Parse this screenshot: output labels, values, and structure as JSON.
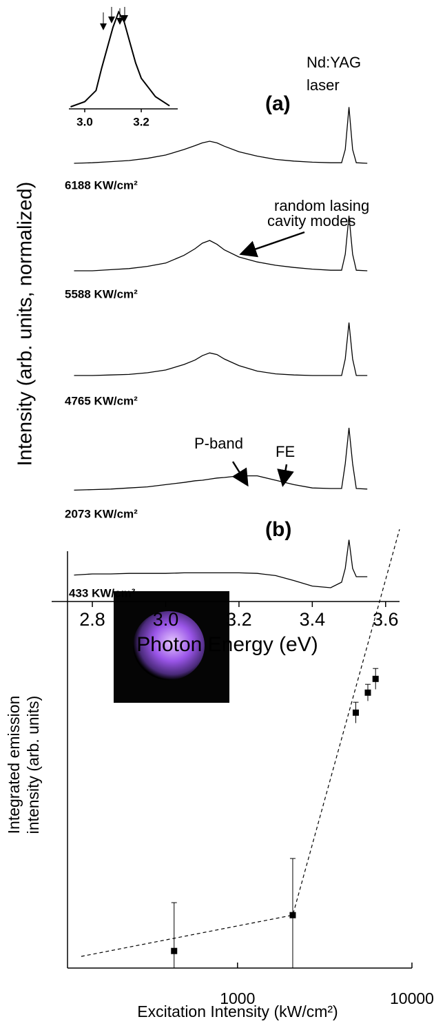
{
  "chart_data": [
    {
      "type": "line",
      "title": "(a)",
      "x_label": "Photon Energy (eV)",
      "y_label": "Intensity (arb. units, normalized)",
      "xlim": [
        2.689,
        3.638
      ],
      "ylim": [
        0,
        10
      ],
      "xticks": [
        2.8,
        {
          "value": 3,
          "label": "3.0"
        },
        3.2,
        3.4,
        3.6
      ],
      "x": [
        2.75,
        2.8,
        2.85,
        2.9,
        2.95,
        3.0,
        3.05,
        3.08,
        3.1,
        3.12,
        3.14,
        3.16,
        3.2,
        3.25,
        3.3,
        3.35,
        3.4,
        3.45,
        3.48,
        3.49,
        3.5,
        3.51,
        3.52,
        3.55
      ],
      "series": [
        {
          "name": "6188 KW/cm²",
          "color": "#000000",
          "values": [
            7.95,
            7.96,
            7.98,
            8.0,
            8.04,
            8.1,
            8.2,
            8.27,
            8.32,
            8.35,
            8.32,
            8.26,
            8.16,
            8.08,
            8.02,
            7.99,
            7.97,
            7.96,
            7.96,
            8.2,
            8.97,
            8.2,
            7.96,
            7.95
          ]
        },
        {
          "name": "5588 KW/cm²",
          "color": "#000000",
          "values": [
            6.0,
            6.0,
            6.02,
            6.04,
            6.08,
            6.14,
            6.28,
            6.4,
            6.5,
            6.55,
            6.48,
            6.38,
            6.25,
            6.16,
            6.1,
            6.06,
            6.03,
            6.01,
            6.01,
            6.3,
            7.0,
            6.3,
            6.01,
            6.0
          ]
        },
        {
          "name": "4765 KW/cm²",
          "color": "#000000",
          "values": [
            4.1,
            4.1,
            4.11,
            4.12,
            4.15,
            4.2,
            4.3,
            4.38,
            4.46,
            4.51,
            4.48,
            4.4,
            4.28,
            4.18,
            4.13,
            4.11,
            4.1,
            4.1,
            4.1,
            4.4,
            5.06,
            4.4,
            4.1,
            4.1
          ]
        },
        {
          "name": "2073 KW/cm²",
          "color": "#000000",
          "values": [
            2.02,
            2.03,
            2.04,
            2.06,
            2.08,
            2.12,
            2.16,
            2.19,
            2.2,
            2.22,
            2.24,
            2.25,
            2.28,
            2.28,
            2.2,
            2.12,
            2.06,
            2.05,
            2.05,
            2.5,
            3.15,
            2.5,
            2.05,
            2.04
          ]
        },
        {
          "name": "433 KW/cm²",
          "color": "#000000",
          "values": [
            0.48,
            0.5,
            0.5,
            0.51,
            0.51,
            0.51,
            0.52,
            0.52,
            0.52,
            0.52,
            0.52,
            0.52,
            0.52,
            0.51,
            0.47,
            0.38,
            0.28,
            0.25,
            0.35,
            0.6,
            1.12,
            0.6,
            0.45,
            0.45
          ]
        }
      ],
      "annotations": [
        "Nd:YAG",
        "laser",
        "random lasing",
        "cavity modes",
        "P-band",
        "FE"
      ]
    },
    {
      "type": "line",
      "xlim": [
        2.944,
        3.329
      ],
      "ylim": [
        0,
        1
      ],
      "xticks": [
        {
          "value": 3,
          "label": "3.0"
        },
        3.2
      ],
      "x": [
        2.95,
        3.0,
        3.04,
        3.06,
        3.08,
        3.1,
        3.12,
        3.14,
        3.16,
        3.18,
        3.2,
        3.25,
        3.3
      ],
      "series": [
        {
          "color": "#000000",
          "values": [
            0.02,
            0.07,
            0.18,
            0.4,
            0.6,
            0.8,
            0.95,
            0.85,
            0.65,
            0.45,
            0.3,
            0.12,
            0.03
          ]
        }
      ]
    },
    {
      "type": "scatter",
      "title": "(b)",
      "x_label": "Excitation Intensity  (kW/cm²)",
      "y_label": [
        "Integrated emission",
        "intensity (arb. units)"
      ],
      "log_x": true,
      "xlim": [
        106,
        10000
      ],
      "ylim": [
        0,
        10.6
      ],
      "xticks": [
        1000,
        10000
      ],
      "x": [
        433,
        2073,
        4765,
        5588,
        6188
      ],
      "values": [
        0.41,
        1.27,
        6.13,
        6.61,
        6.94
      ],
      "errors": [
        1.16,
        1.36,
        0.25,
        0.2,
        0.25
      ],
      "color": "#000000",
      "fit": {
        "x": [
          127,
          2073,
          8490
        ],
        "values": [
          0.28,
          1.27,
          10.53
        ]
      }
    }
  ]
}
